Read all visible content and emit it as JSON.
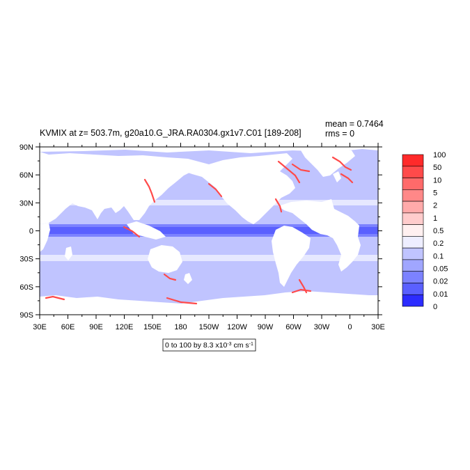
{
  "title": "KVMIX at z= 503.7m, g20a10.G_JRA.RA0304.gx1v7.C01 [189-208]",
  "stats": {
    "mean": "mean = 0.7464",
    "rms": "rms = 0"
  },
  "range_note": {
    "prefix": "0 to 100 by 8.3 x10",
    "exp": "-3",
    "unit": " cm s",
    "unit_exp": "-1"
  },
  "lat_labels": [
    "90N",
    "60N",
    "30N",
    "0",
    "30S",
    "60S",
    "90S"
  ],
  "lon_labels": [
    "30E",
    "60E",
    "90E",
    "120E",
    "150E",
    "180",
    "150W",
    "120W",
    "90W",
    "60W",
    "30W",
    "0",
    "30E"
  ],
  "colorbar": {
    "levels": [
      "100",
      "50",
      "10",
      "5",
      "2",
      "1",
      "0.5",
      "0.2",
      "0.1",
      "0.05",
      "0.02",
      "0.01",
      "0"
    ],
    "colors": [
      "#ff2a2a",
      "#ff4a4a",
      "#ff6a6a",
      "#ff8888",
      "#ffaaaa",
      "#ffcccc",
      "#fff0f0",
      "#eeeeff",
      "#c0c4ff",
      "#a0a6ff",
      "#7c82ff",
      "#5a60ff",
      "#2c2cff"
    ]
  },
  "colors": {
    "ocean_base": "#c0c4ff",
    "band_light": "#e6e8ff",
    "equator_mid": "#7c82ff",
    "equator_dark": "#5a60ff",
    "land": "#ffffff",
    "coastal_high": "#ff4a4a"
  }
}
